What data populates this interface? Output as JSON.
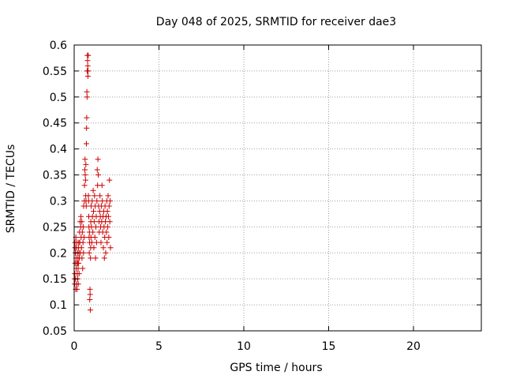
{
  "chart_data": {
    "type": "scatter",
    "title": "Day 048 of 2025, SRMTID for receiver dae3",
    "xlabel": "GPS time / hours",
    "ylabel": "SRMTID / TECUs",
    "xlim": [
      0,
      24
    ],
    "ylim": [
      0.05,
      0.6
    ],
    "xticks": [
      0,
      5,
      10,
      15,
      20
    ],
    "yticks": [
      0.05,
      0.1,
      0.15,
      0.2,
      0.25,
      0.3,
      0.35,
      0.4,
      0.45,
      0.5,
      0.55,
      0.6
    ],
    "grid": true,
    "marker": "+",
    "color": "#cc0000",
    "series": [
      {
        "points": [
          [
            0.02,
            0.15
          ],
          [
            0.03,
            0.14
          ],
          [
            0.04,
            0.16
          ],
          [
            0.05,
            0.21
          ],
          [
            0.05,
            0.22
          ],
          [
            0.06,
            0.18
          ],
          [
            0.07,
            0.2
          ],
          [
            0.08,
            0.15
          ],
          [
            0.09,
            0.13
          ],
          [
            0.1,
            0.23
          ],
          [
            0.11,
            0.19
          ],
          [
            0.12,
            0.17
          ],
          [
            0.13,
            0.21
          ],
          [
            0.14,
            0.14
          ],
          [
            0.15,
            0.18
          ],
          [
            0.16,
            0.22
          ],
          [
            0.17,
            0.13
          ],
          [
            0.18,
            0.16
          ],
          [
            0.19,
            0.2
          ],
          [
            0.2,
            0.18
          ],
          [
            0.21,
            0.15
          ],
          [
            0.22,
            0.19
          ],
          [
            0.23,
            0.17
          ],
          [
            0.24,
            0.14
          ],
          [
            0.25,
            0.21
          ],
          [
            0.26,
            0.18
          ],
          [
            0.27,
            0.22
          ],
          [
            0.28,
            0.2
          ],
          [
            0.29,
            0.16
          ],
          [
            0.3,
            0.19
          ],
          [
            0.32,
            0.24
          ],
          [
            0.33,
            0.22
          ],
          [
            0.35,
            0.26
          ],
          [
            0.36,
            0.2
          ],
          [
            0.38,
            0.25
          ],
          [
            0.4,
            0.27
          ],
          [
            0.41,
            0.23
          ],
          [
            0.43,
            0.21
          ],
          [
            0.45,
            0.26
          ],
          [
            0.46,
            0.19
          ],
          [
            0.48,
            0.24
          ],
          [
            0.5,
            0.17
          ],
          [
            0.52,
            0.22
          ],
          [
            0.53,
            0.25
          ],
          [
            0.55,
            0.2
          ],
          [
            0.56,
            0.29
          ],
          [
            0.58,
            0.23
          ],
          [
            0.6,
            0.3
          ],
          [
            0.61,
            0.33
          ],
          [
            0.63,
            0.36
          ],
          [
            0.64,
            0.38
          ],
          [
            0.65,
            0.35
          ],
          [
            0.67,
            0.34
          ],
          [
            0.68,
            0.31
          ],
          [
            0.69,
            0.37
          ],
          [
            0.7,
            0.3
          ],
          [
            0.71,
            0.29
          ],
          [
            0.72,
            0.41
          ],
          [
            0.73,
            0.44
          ],
          [
            0.74,
            0.46
          ],
          [
            0.75,
            0.51
          ],
          [
            0.76,
            0.5
          ],
          [
            0.77,
            0.55
          ],
          [
            0.78,
            0.58
          ],
          [
            0.79,
            0.57
          ],
          [
            0.8,
            0.56
          ],
          [
            0.81,
            0.54
          ],
          [
            0.82,
            0.55
          ],
          [
            0.83,
            0.58
          ],
          [
            0.84,
            0.31
          ],
          [
            0.85,
            0.3
          ],
          [
            0.86,
            0.27
          ],
          [
            0.87,
            0.25
          ],
          [
            0.88,
            0.23
          ],
          [
            0.89,
            0.2
          ],
          [
            0.9,
            0.24
          ],
          [
            0.91,
            0.22
          ],
          [
            0.92,
            0.11
          ],
          [
            0.93,
            0.13
          ],
          [
            0.94,
            0.12
          ],
          [
            0.95,
            0.09
          ],
          [
            0.96,
            0.19
          ],
          [
            0.97,
            0.21
          ],
          [
            0.98,
            0.26
          ],
          [
            0.99,
            0.23
          ],
          [
            1.0,
            0.29
          ],
          [
            1.02,
            0.25
          ],
          [
            1.04,
            0.22
          ],
          [
            1.06,
            0.3
          ],
          [
            1.08,
            0.27
          ],
          [
            1.1,
            0.24
          ],
          [
            1.12,
            0.32
          ],
          [
            1.14,
            0.28
          ],
          [
            1.16,
            0.21
          ],
          [
            1.18,
            0.26
          ],
          [
            1.2,
            0.31
          ],
          [
            1.22,
            0.23
          ],
          [
            1.24,
            0.29
          ],
          [
            1.26,
            0.19
          ],
          [
            1.28,
            0.25
          ],
          [
            1.3,
            0.27
          ],
          [
            1.32,
            0.22
          ],
          [
            1.34,
            0.3
          ],
          [
            1.36,
            0.36
          ],
          [
            1.38,
            0.33
          ],
          [
            1.4,
            0.38
          ],
          [
            1.42,
            0.35
          ],
          [
            1.44,
            0.29
          ],
          [
            1.46,
            0.26
          ],
          [
            1.48,
            0.24
          ],
          [
            1.5,
            0.28
          ],
          [
            1.52,
            0.31
          ],
          [
            1.54,
            0.27
          ],
          [
            1.56,
            0.25
          ],
          [
            1.58,
            0.22
          ],
          [
            1.6,
            0.29
          ],
          [
            1.62,
            0.26
          ],
          [
            1.64,
            0.33
          ],
          [
            1.66,
            0.3
          ],
          [
            1.68,
            0.24
          ],
          [
            1.7,
            0.27
          ],
          [
            1.72,
            0.21
          ],
          [
            1.74,
            0.28
          ],
          [
            1.76,
            0.25
          ],
          [
            1.78,
            0.19
          ],
          [
            1.8,
            0.23
          ],
          [
            1.82,
            0.29
          ],
          [
            1.84,
            0.26
          ],
          [
            1.86,
            0.2
          ],
          [
            1.88,
            0.27
          ],
          [
            1.9,
            0.24
          ],
          [
            1.92,
            0.3
          ],
          [
            1.94,
            0.22
          ],
          [
            1.96,
            0.28
          ],
          [
            1.98,
            0.25
          ],
          [
            2.0,
            0.31
          ],
          [
            2.02,
            0.27
          ],
          [
            2.04,
            0.23
          ],
          [
            2.06,
            0.29
          ],
          [
            2.08,
            0.34
          ],
          [
            2.1,
            0.26
          ],
          [
            2.12,
            0.3
          ],
          [
            2.14,
            0.21
          ]
        ]
      }
    ]
  }
}
